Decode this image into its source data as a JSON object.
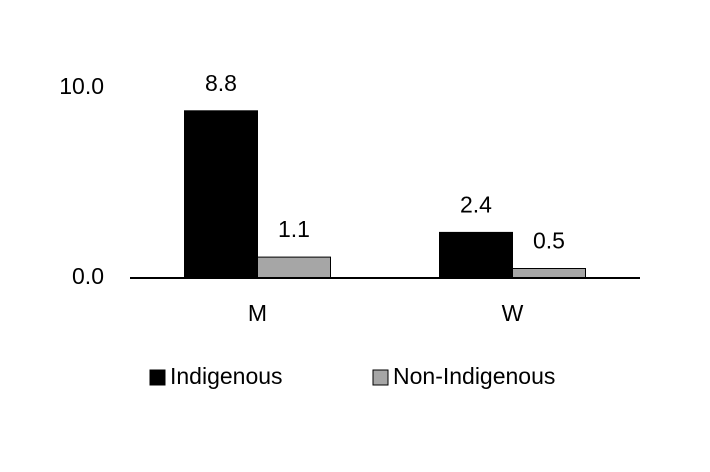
{
  "chart_data": {
    "type": "bar",
    "categories": [
      "M",
      "W"
    ],
    "series": [
      {
        "name": "Indigenous",
        "color": "#000000",
        "values": [
          8.8,
          2.4
        ]
      },
      {
        "name": "Non-Indigenous",
        "color": "#a6a6a6",
        "values": [
          1.1,
          0.5
        ]
      }
    ],
    "ylim": [
      0,
      10
    ],
    "yticks": [
      {
        "value": 0,
        "label": "0.0"
      },
      {
        "value": 10,
        "label": "10.0"
      }
    ],
    "grid": false,
    "legend": "bottom"
  }
}
